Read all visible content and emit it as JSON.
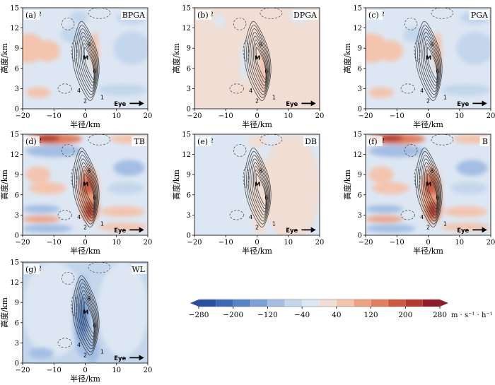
{
  "chart_data": {
    "type": "heatmap",
    "description_units": "shaded field in m·s⁻¹·h⁻¹; contours show a vortex core in each panel",
    "shared": {
      "xlabel": "半径/km",
      "ylabel": "高度/km",
      "xlim": [
        -20,
        20
      ],
      "ylim": [
        0,
        15
      ],
      "xticks": [
        -20,
        -10,
        0,
        10,
        20
      ],
      "yticks": [
        0,
        3,
        6,
        9,
        12,
        15
      ],
      "contour_labels": [
        "M",
        "8",
        "6",
        "4",
        "2",
        "1",
        "2"
      ],
      "eye_label": "Eye"
    },
    "colorbar": {
      "unit": "m · s⁻¹ · h⁻¹",
      "levels": [
        -280,
        -240,
        -200,
        -160,
        -120,
        -80,
        -40,
        0,
        40,
        80,
        120,
        160,
        200,
        240,
        280
      ],
      "tick_labels": [
        "−280",
        "−200",
        "−120",
        "−40",
        "40",
        "120",
        "200",
        "280"
      ],
      "colors": [
        "#2b4fa0",
        "#3c68b8",
        "#5683c8",
        "#7da1d6",
        "#a3bde3",
        "#c4d6ec",
        "#dde7f3",
        "#f0ddd3",
        "#f3c4ae",
        "#eda284",
        "#e17f5e",
        "#cc5a43",
        "#b23a33",
        "#8f1d27"
      ]
    },
    "panels": [
      {
        "id": "a",
        "tag": "(a)",
        "name": "BPGA"
      },
      {
        "id": "b",
        "tag": "(b)",
        "name": "DPGA"
      },
      {
        "id": "c",
        "tag": "(c)",
        "name": "PGA"
      },
      {
        "id": "d",
        "tag": "(d)",
        "name": "TB"
      },
      {
        "id": "e",
        "tag": "(e)",
        "name": "DB"
      },
      {
        "id": "f",
        "tag": "(f)",
        "name": "B"
      },
      {
        "id": "g",
        "tag": "(g)",
        "name": "WL"
      }
    ]
  }
}
